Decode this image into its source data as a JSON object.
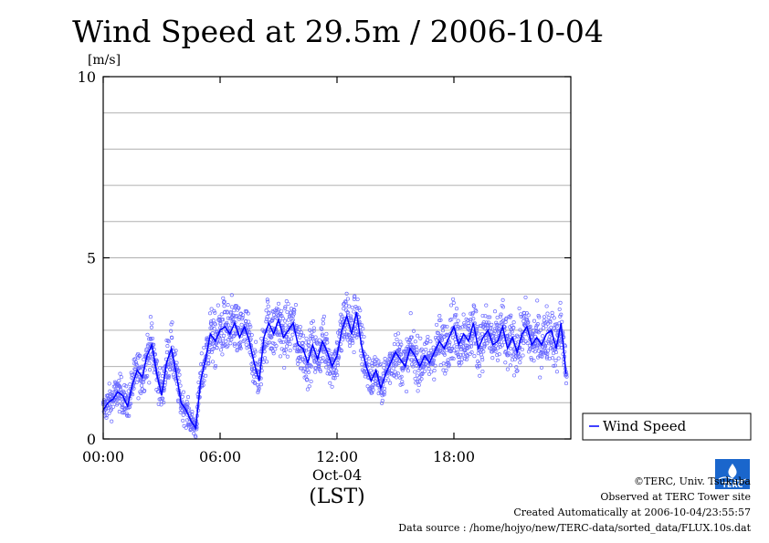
{
  "chart_data": {
    "type": "scatter",
    "title": "Wind Speed at 29.5m / 2006-10-04",
    "ylabel": "[m/s]",
    "xlabel": "(LST)",
    "date_label": "Oct-04",
    "ylim": [
      0,
      10
    ],
    "xlim_hours": [
      0,
      24
    ],
    "y_ticks": [
      {
        "value": 0,
        "label": "0"
      },
      {
        "value": 5,
        "label": "5"
      },
      {
        "value": 10,
        "label": "10"
      }
    ],
    "x_ticks": [
      {
        "value": 0,
        "label": "00:00"
      },
      {
        "value": 6,
        "label": "06:00"
      },
      {
        "value": 12,
        "label": "12:00"
      },
      {
        "value": 18,
        "label": "18:00"
      }
    ],
    "grid": true,
    "legend_position": "right",
    "series": [
      {
        "name": "Wind Speed",
        "color": "#0000ff",
        "x_hours": [
          0.0,
          0.25,
          0.5,
          0.75,
          1.0,
          1.25,
          1.5,
          1.75,
          2.0,
          2.25,
          2.5,
          2.75,
          3.0,
          3.25,
          3.5,
          3.75,
          4.0,
          4.25,
          4.5,
          4.75,
          5.0,
          5.25,
          5.5,
          5.75,
          6.0,
          6.25,
          6.5,
          6.75,
          7.0,
          7.25,
          7.5,
          7.75,
          8.0,
          8.25,
          8.5,
          8.75,
          9.0,
          9.25,
          9.5,
          9.75,
          10.0,
          10.25,
          10.5,
          10.75,
          11.0,
          11.25,
          11.5,
          11.75,
          12.0,
          12.25,
          12.5,
          12.75,
          13.0,
          13.25,
          13.5,
          13.75,
          14.0,
          14.25,
          14.5,
          14.75,
          15.0,
          15.25,
          15.5,
          15.75,
          16.0,
          16.25,
          16.5,
          16.75,
          17.0,
          17.25,
          17.5,
          17.75,
          18.0,
          18.25,
          18.5,
          18.75,
          19.0,
          19.25,
          19.5,
          19.75,
          20.0,
          20.25,
          20.5,
          20.75,
          21.0,
          21.25,
          21.5,
          21.75,
          22.0,
          22.25,
          22.5,
          22.75,
          23.0,
          23.25,
          23.5,
          23.75
        ],
        "values": [
          0.8,
          1.0,
          1.1,
          1.3,
          1.2,
          0.9,
          1.5,
          1.9,
          1.7,
          2.3,
          2.6,
          1.8,
          1.2,
          2.1,
          2.5,
          1.8,
          1.0,
          0.8,
          0.5,
          0.3,
          1.6,
          2.2,
          2.9,
          2.7,
          3.0,
          3.1,
          2.9,
          3.2,
          2.8,
          3.1,
          2.7,
          2.1,
          1.6,
          2.8,
          3.2,
          2.9,
          3.3,
          2.8,
          3.0,
          3.2,
          2.6,
          2.5,
          2.1,
          2.6,
          2.2,
          2.7,
          2.4,
          2.0,
          2.3,
          3.0,
          3.4,
          2.9,
          3.5,
          2.6,
          2.0,
          1.6,
          1.9,
          1.4,
          1.8,
          2.1,
          2.4,
          2.2,
          2.0,
          2.5,
          2.3,
          2.0,
          2.3,
          2.1,
          2.4,
          2.7,
          2.5,
          2.8,
          3.1,
          2.6,
          2.9,
          2.7,
          3.2,
          2.5,
          2.8,
          3.0,
          2.6,
          2.7,
          3.1,
          2.5,
          2.8,
          2.4,
          2.9,
          3.1,
          2.6,
          2.8,
          2.6,
          2.9,
          3.0,
          2.5,
          3.2,
          1.8
        ]
      }
    ],
    "scatter_spread": 0.7
  },
  "credits": {
    "copyright": "©TERC, Univ. Tsukuba",
    "site": "Observed at TERC Tower site",
    "created": "Created Automatically at 2006-10-04/23:55:57",
    "source": "Data source : /home/hojyo/new/TERC-data/sorted_data/FLUX.10s.dat"
  },
  "logo": {
    "text": "TERC",
    "color": "#1a66cc"
  }
}
